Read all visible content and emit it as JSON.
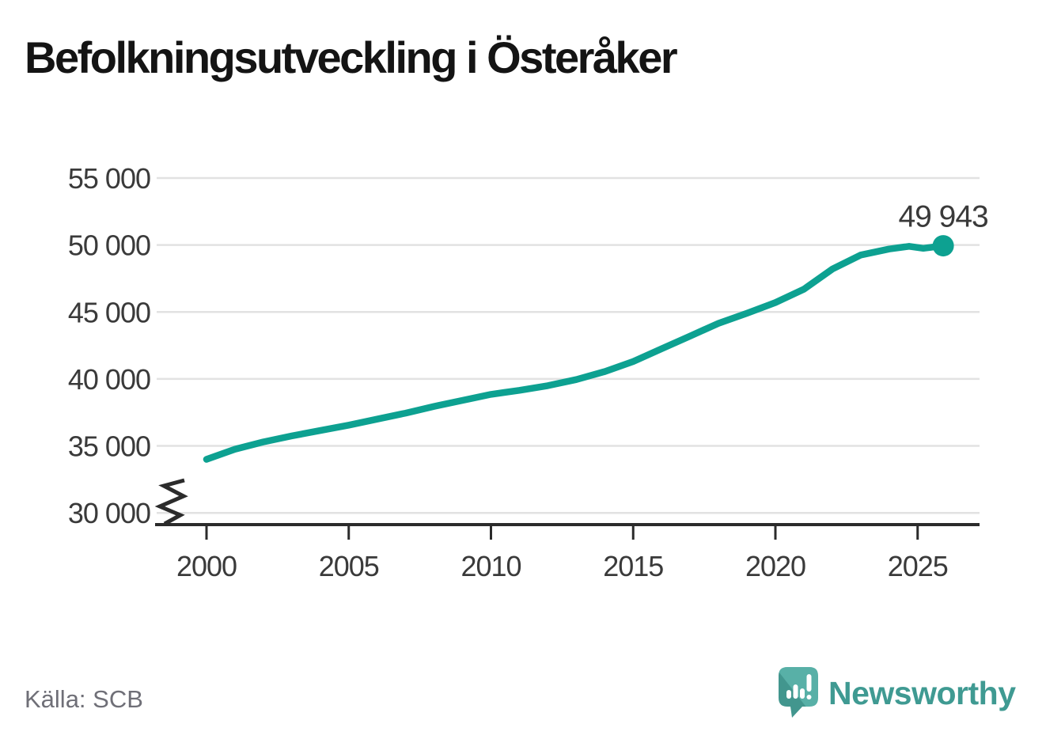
{
  "header": {
    "title": "Befolkningsutveckling i Österåker"
  },
  "chart_data": {
    "type": "line",
    "title": "Befolkningsutveckling i Österåker",
    "x_unit": "year",
    "x": [
      2000,
      2001,
      2002,
      2003,
      2004,
      2005,
      2006,
      2007,
      2008,
      2009,
      2010,
      2011,
      2012,
      2013,
      2014,
      2015,
      2016,
      2017,
      2018,
      2019,
      2020,
      2021,
      2022,
      2023,
      2024,
      2024.7,
      2025.2,
      2025.9
    ],
    "values": [
      34000,
      34750,
      35300,
      35750,
      36150,
      36550,
      37000,
      37450,
      37950,
      38400,
      38850,
      39150,
      39500,
      39950,
      40550,
      41300,
      42250,
      43200,
      44150,
      44900,
      45700,
      46700,
      48200,
      49250,
      49700,
      49900,
      49750,
      49943
    ],
    "end_value": 49943,
    "end_label": "49 943",
    "x_ticks": [
      2000,
      2005,
      2010,
      2015,
      2020,
      2025
    ],
    "x_tick_labels": [
      "2000",
      "2005",
      "2010",
      "2015",
      "2020",
      "2025"
    ],
    "y_ticks": [
      30000,
      35000,
      40000,
      45000,
      50000,
      55000
    ],
    "y_tick_labels": [
      "30 000",
      "35 000",
      "40 000",
      "45 000",
      "50 000",
      "55 000"
    ],
    "ylim": [
      30000,
      55000
    ],
    "axis_break_below": 30000,
    "grid": true,
    "legend": "none",
    "line_color": "#0da191"
  },
  "footer": {
    "source": "Källa: SCB",
    "brand": "Newsworthy"
  },
  "colors": {
    "line": "#0da191",
    "gridline": "#e2e2e2",
    "axis": "#2b2b2b",
    "tick_text": "#3a3a3a",
    "title_text": "#141414",
    "source_text": "#6f6f77",
    "brand_teal": "#3f9a92",
    "logo_fill_dark": "#42968e",
    "logo_fill_light": "#58b0a7"
  }
}
